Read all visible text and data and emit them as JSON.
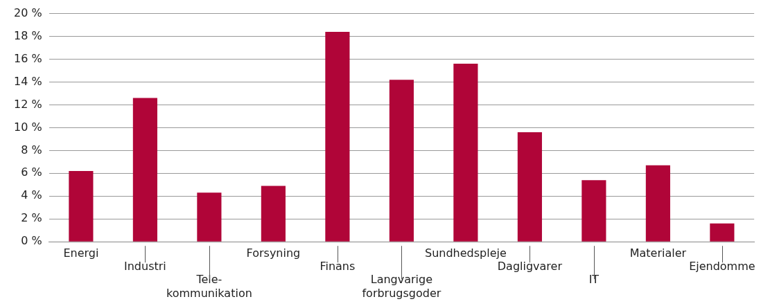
{
  "chart_data": {
    "type": "bar",
    "categories": [
      "Energi",
      "Industri",
      "Tele-\nkommunikation",
      "Forsyning",
      "Finans",
      "Langvarige\nforbrugsgoder",
      "Sundhedspleje",
      "Dagligvarer",
      "IT",
      "Materialer",
      "Ejendomme"
    ],
    "values": [
      6.2,
      12.6,
      4.3,
      4.9,
      18.4,
      14.2,
      15.6,
      9.6,
      5.4,
      6.7,
      1.6
    ],
    "color": "#b00538",
    "ylim": [
      0,
      20
    ],
    "yticks": [
      {
        "value": 0,
        "label": "0 %"
      },
      {
        "value": 2,
        "label": "2 %"
      },
      {
        "value": 4,
        "label": "4 %"
      },
      {
        "value": 6,
        "label": "6 %"
      },
      {
        "value": 8,
        "label": "8 %"
      },
      {
        "value": 10,
        "label": "10 %"
      },
      {
        "value": 12,
        "label": "12 %"
      },
      {
        "value": 14,
        "label": "14 %"
      },
      {
        "value": 16,
        "label": "16 %"
      },
      {
        "value": 18,
        "label": "18 %"
      },
      {
        "value": 20,
        "label": "20 %"
      }
    ],
    "grid": "y"
  }
}
